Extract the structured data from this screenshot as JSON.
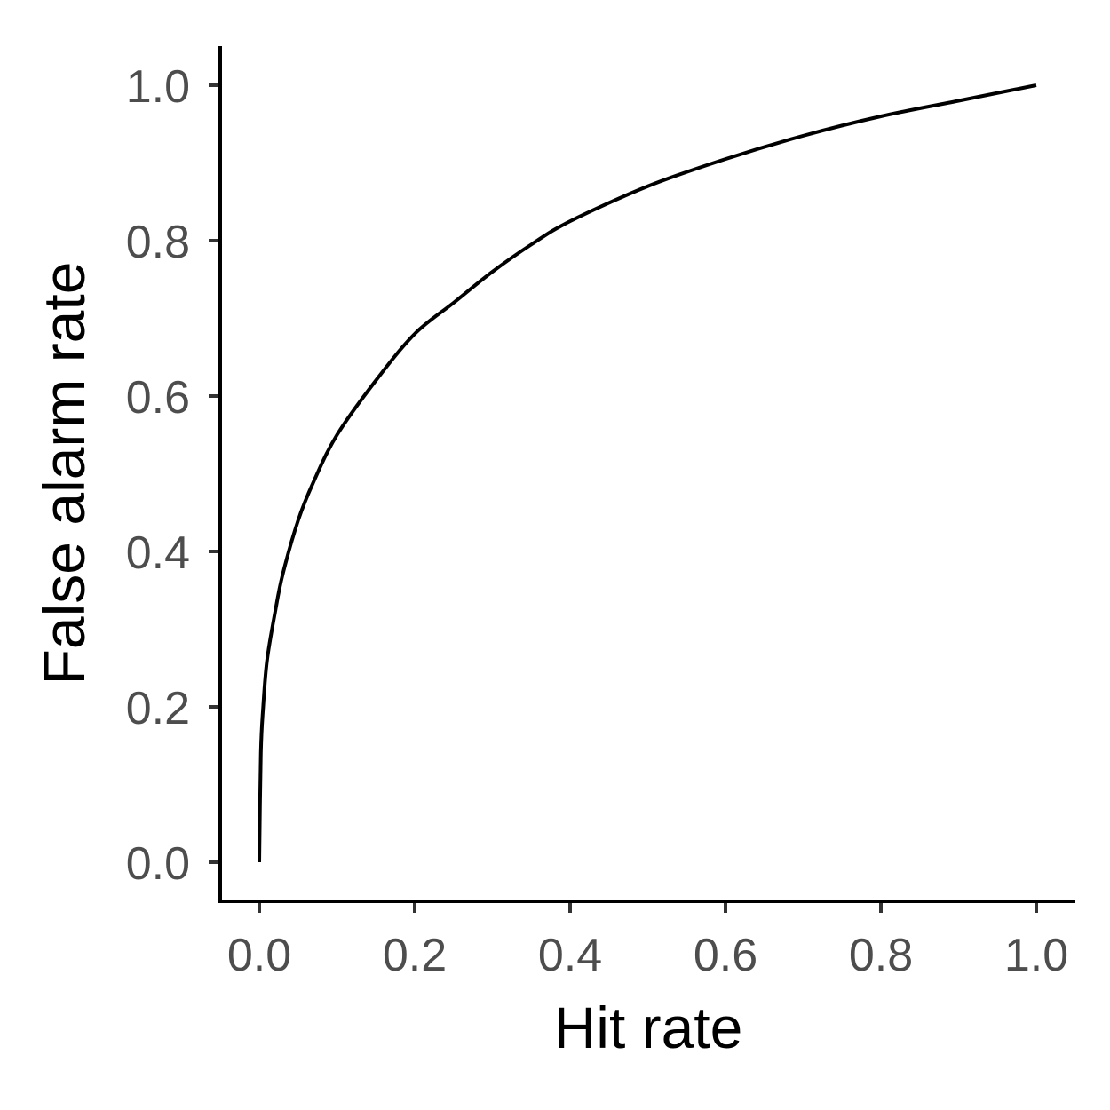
{
  "chart_data": {
    "type": "line",
    "title": "",
    "xlabel": "Hit rate",
    "ylabel": "False alarm rate",
    "xlim": [
      0,
      1
    ],
    "ylim": [
      0,
      1
    ],
    "x_ticks": [
      0.0,
      0.2,
      0.4,
      0.6,
      0.8,
      1.0
    ],
    "y_ticks": [
      0.0,
      0.2,
      0.4,
      0.6,
      0.8,
      1.0
    ],
    "x_tick_labels": [
      "0.0",
      "0.2",
      "0.4",
      "0.6",
      "0.8",
      "1.0"
    ],
    "y_tick_labels": [
      "0.0",
      "0.2",
      "0.4",
      "0.6",
      "0.8",
      "1.0"
    ],
    "grid": false,
    "series": [
      {
        "color": "#000000",
        "x": [
          0.0,
          0.002,
          0.005,
          0.01,
          0.02,
          0.03,
          0.05,
          0.07,
          0.1,
          0.15,
          0.2,
          0.25,
          0.3,
          0.35,
          0.4,
          0.5,
          0.6,
          0.7,
          0.8,
          0.9,
          1.0
        ],
        "y": [
          0.0,
          0.14,
          0.2,
          0.26,
          0.32,
          0.37,
          0.44,
          0.49,
          0.55,
          0.62,
          0.68,
          0.72,
          0.76,
          0.795,
          0.825,
          0.87,
          0.905,
          0.935,
          0.96,
          0.98,
          1.0
        ]
      }
    ]
  }
}
